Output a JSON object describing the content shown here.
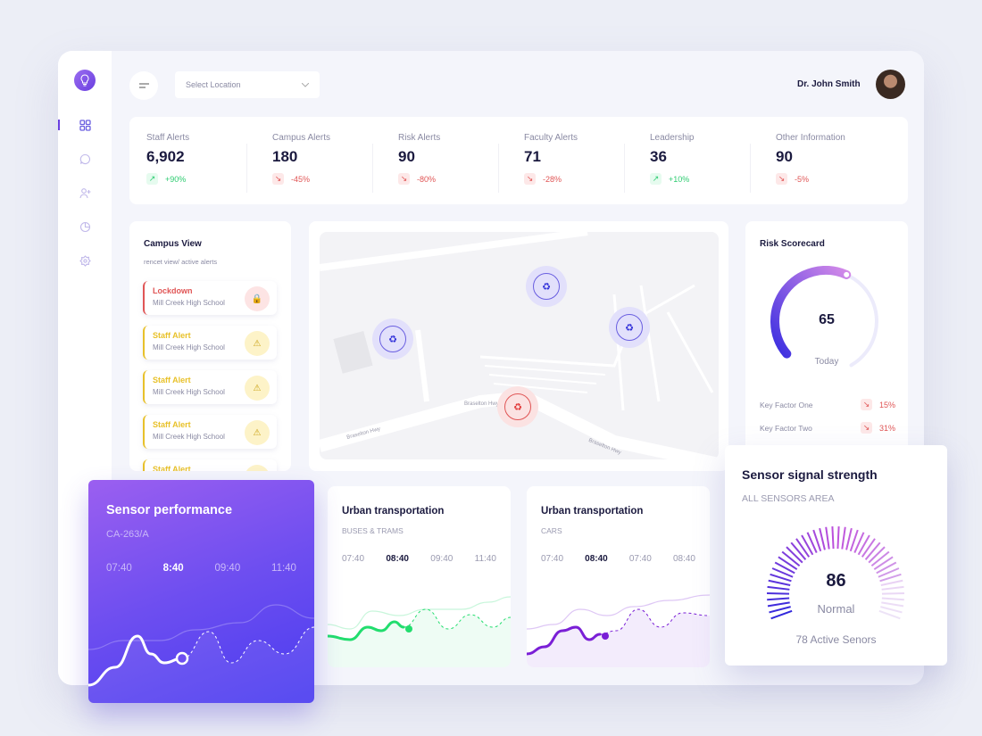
{
  "header": {
    "location_placeholder": "Select Location",
    "user_name": "Dr. John Smith"
  },
  "sidebar": {
    "items": [
      "dashboard",
      "messages",
      "add-user",
      "reports",
      "settings"
    ],
    "active": "dashboard"
  },
  "stats": [
    {
      "label": "Staff Alerts",
      "value": "6,902",
      "change": "+90%",
      "trend": "up"
    },
    {
      "label": "Campus Alerts",
      "value": "180",
      "change": "-45%",
      "trend": "down"
    },
    {
      "label": "Risk Alerts",
      "value": "90",
      "change": "-80%",
      "trend": "down"
    },
    {
      "label": "Faculty Alerts",
      "value": "71",
      "change": "-28%",
      "trend": "down"
    },
    {
      "label": "Leadership",
      "value": "36",
      "change": "+10%",
      "trend": "up"
    },
    {
      "label": "Other Information",
      "value": "90",
      "change": "-5%",
      "trend": "down"
    }
  ],
  "campus": {
    "title": "Campus View",
    "subtitle": "rencet view/ active alerts",
    "alerts": [
      {
        "title": "Lockdown",
        "school": "Mill Creek High School",
        "type": "lockdown"
      },
      {
        "title": "Staff Alert",
        "school": "Mill Creek High School",
        "type": "warning"
      },
      {
        "title": "Staff Alert",
        "school": "Mill Creek High School",
        "type": "warning"
      },
      {
        "title": "Staff Alert",
        "school": "Mill Creek High School",
        "type": "warning"
      },
      {
        "title": "Staff Alert",
        "school": "",
        "type": "warning"
      }
    ]
  },
  "map": {
    "streets": [
      "Braselton Hwy",
      "Braselton Hwy",
      "Braselton Hwy"
    ]
  },
  "risk": {
    "title": "Risk Scorecard",
    "score": "65",
    "score_value": 65,
    "caption": "Today",
    "factors": [
      {
        "label": "Key Factor One",
        "value": "15%"
      },
      {
        "label": "Key Factor Two",
        "value": "31%"
      }
    ]
  },
  "sensor_perf": {
    "title": "Sensor performance",
    "id": "CA-263/A",
    "times": [
      "07:40",
      "8:40",
      "09:40",
      "11:40"
    ],
    "active": 1
  },
  "urban1": {
    "title": "Urban transportation",
    "subtitle": "BUSES & TRAMS",
    "times": [
      "07:40",
      "08:40",
      "09:40",
      "11:40"
    ],
    "active": 1,
    "color": "#22dd6e"
  },
  "urban2": {
    "title": "Urban transportation",
    "subtitle": "CARS",
    "times": [
      "07:40",
      "08:40",
      "07:40",
      "08:40"
    ],
    "active": 1,
    "color": "#7a1fd6"
  },
  "signal": {
    "title": "Sensor signal strength",
    "subtitle": "ALL SENSORS AREA",
    "value": "86",
    "status": "Normal",
    "active": "78 Active Senors"
  },
  "colors": {
    "accent": "#6a3fe0",
    "up": "#2ecc71",
    "down": "#e05555",
    "warning": "#e8c12a"
  }
}
